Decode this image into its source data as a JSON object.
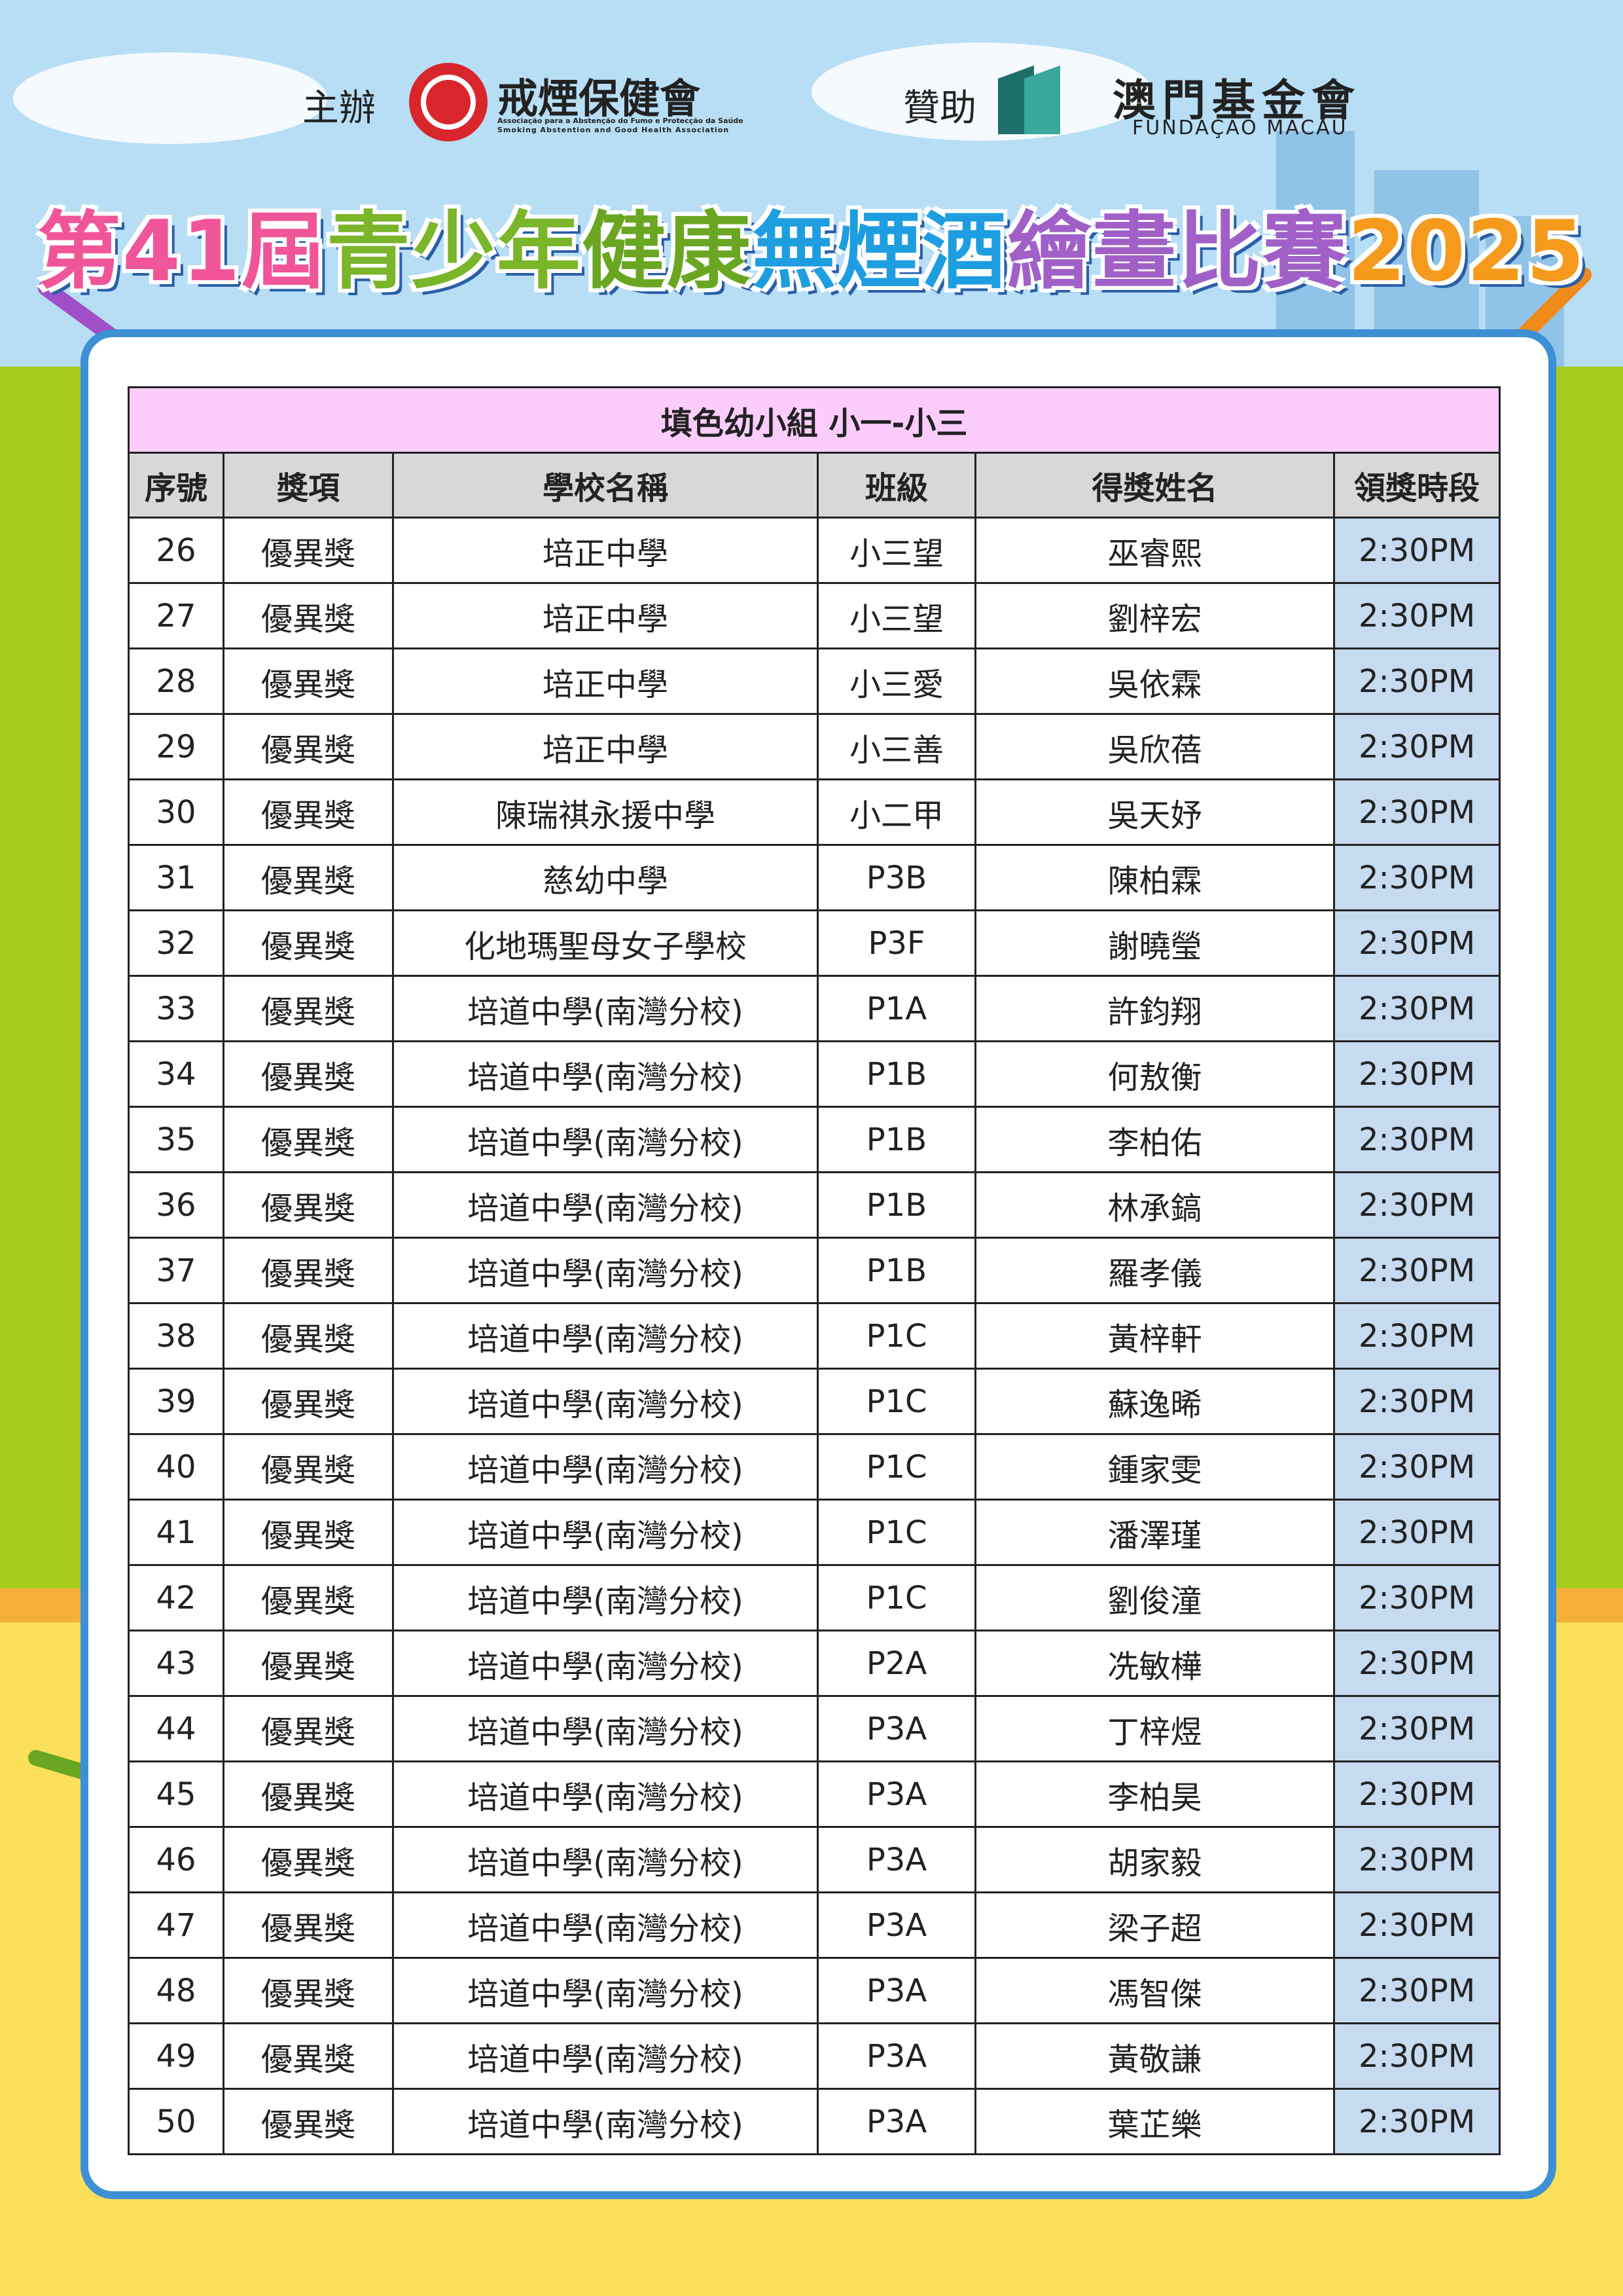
{
  "header": {
    "organizer_label": "主辦",
    "organizer_name": "戒煙保健會",
    "organizer_subtitle_pt": "Associação para a Abstenção do Fumo e Protecção da Saúde",
    "organizer_subtitle_en": "Smoking Abstention and Good Health Association",
    "sponsor_label": "贊助",
    "sponsor_name": "澳門基金會",
    "sponsor_subtitle": "FUNDAÇÃO MACAU",
    "title_parts": [
      {
        "text": "第41屆",
        "color": "#f0559a"
      },
      {
        "text": "青少年",
        "color": "#7ab52a"
      },
      {
        "text": "健康",
        "color": "#6aa622"
      },
      {
        "text": "無煙酒",
        "color": "#1e9ee0"
      },
      {
        "text": "繪畫比賽",
        "color": "#a060c8"
      },
      {
        "text": "2025",
        "color": "#f59a1c"
      }
    ]
  },
  "table": {
    "caption": "填色幼小組 小一-小三",
    "headers": [
      "序號",
      "獎項",
      "學校名稱",
      "班級",
      "得獎姓名",
      "領獎時段"
    ],
    "rows": [
      [
        "26",
        "優異獎",
        "培正中學",
        "小三望",
        "巫睿熙",
        "2:30PM"
      ],
      [
        "27",
        "優異獎",
        "培正中學",
        "小三望",
        "劉梓宏",
        "2:30PM"
      ],
      [
        "28",
        "優異獎",
        "培正中學",
        "小三愛",
        "吳依霖",
        "2:30PM"
      ],
      [
        "29",
        "優異獎",
        "培正中學",
        "小三善",
        "吳欣蓓",
        "2:30PM"
      ],
      [
        "30",
        "優異獎",
        "陳瑞祺永援中學",
        "小二甲",
        "吳天妤",
        "2:30PM"
      ],
      [
        "31",
        "優異獎",
        "慈幼中學",
        "P3B",
        "陳柏霖",
        "2:30PM"
      ],
      [
        "32",
        "優異獎",
        "化地瑪聖母女子學校",
        "P3F",
        "謝曉瑩",
        "2:30PM"
      ],
      [
        "33",
        "優異獎",
        "培道中學(南灣分校)",
        "P1A",
        "許鈞翔",
        "2:30PM"
      ],
      [
        "34",
        "優異獎",
        "培道中學(南灣分校)",
        "P1B",
        "何敖衡",
        "2:30PM"
      ],
      [
        "35",
        "優異獎",
        "培道中學(南灣分校)",
        "P1B",
        "李柏佑",
        "2:30PM"
      ],
      [
        "36",
        "優異獎",
        "培道中學(南灣分校)",
        "P1B",
        "林承鎬",
        "2:30PM"
      ],
      [
        "37",
        "優異獎",
        "培道中學(南灣分校)",
        "P1B",
        "羅孝儀",
        "2:30PM"
      ],
      [
        "38",
        "優異獎",
        "培道中學(南灣分校)",
        "P1C",
        "黃梓軒",
        "2:30PM"
      ],
      [
        "39",
        "優異獎",
        "培道中學(南灣分校)",
        "P1C",
        "蘇逸晞",
        "2:30PM"
      ],
      [
        "40",
        "優異獎",
        "培道中學(南灣分校)",
        "P1C",
        "鍾家雯",
        "2:30PM"
      ],
      [
        "41",
        "優異獎",
        "培道中學(南灣分校)",
        "P1C",
        "潘澤瑾",
        "2:30PM"
      ],
      [
        "42",
        "優異獎",
        "培道中學(南灣分校)",
        "P1C",
        "劉俊潼",
        "2:30PM"
      ],
      [
        "43",
        "優異獎",
        "培道中學(南灣分校)",
        "P2A",
        "冼敏樺",
        "2:30PM"
      ],
      [
        "44",
        "優異獎",
        "培道中學(南灣分校)",
        "P3A",
        "丁梓煜",
        "2:30PM"
      ],
      [
        "45",
        "優異獎",
        "培道中學(南灣分校)",
        "P3A",
        "李柏昊",
        "2:30PM"
      ],
      [
        "46",
        "優異獎",
        "培道中學(南灣分校)",
        "P3A",
        "胡家毅",
        "2:30PM"
      ],
      [
        "47",
        "優異獎",
        "培道中學(南灣分校)",
        "P3A",
        "梁子超",
        "2:30PM"
      ],
      [
        "48",
        "優異獎",
        "培道中學(南灣分校)",
        "P3A",
        "馮智傑",
        "2:30PM"
      ],
      [
        "49",
        "優異獎",
        "培道中學(南灣分校)",
        "P3A",
        "黃敬謙",
        "2:30PM"
      ],
      [
        "50",
        "優異獎",
        "培道中學(南灣分校)",
        "P3A",
        "葉芷樂",
        "2:30PM"
      ]
    ]
  }
}
